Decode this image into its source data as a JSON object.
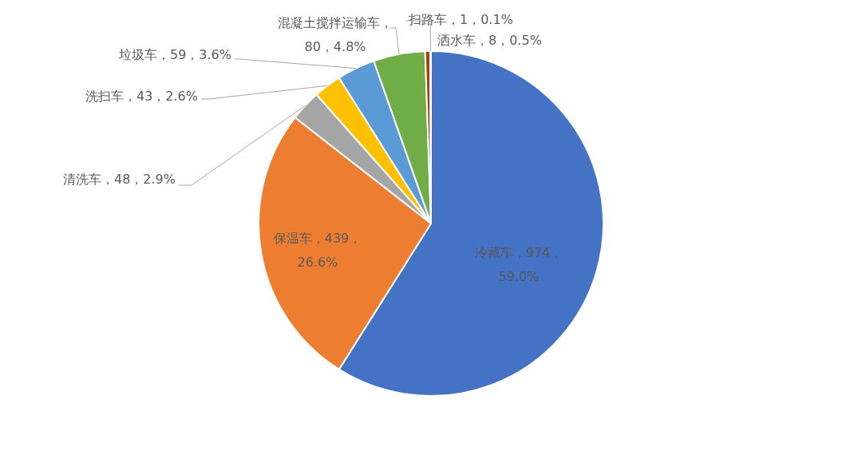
{
  "chart_data": {
    "type": "pie",
    "categories": [
      "冷藏车",
      "保温车",
      "清洗车",
      "洗扫车",
      "垃圾车",
      "混凝土搅拌运输车",
      "洒水车",
      "扫路车"
    ],
    "values": [
      974,
      439,
      48,
      43,
      59,
      80,
      8,
      1
    ],
    "colors": [
      "#4472c4",
      "#ed7d31",
      "#a5a5a5",
      "#ffc000",
      "#5b9bd5",
      "#70ad47",
      "#9e480e",
      "#264478"
    ],
    "value_labels": [
      "，974，\n59.0%",
      "，439，\n26.6%",
      "，48，2.9%",
      "，43，2.6%",
      "，59，3.6%",
      "，\n80，4.8%",
      "，8，0.5%",
      "，1，0.1%"
    ],
    "legend": false
  }
}
